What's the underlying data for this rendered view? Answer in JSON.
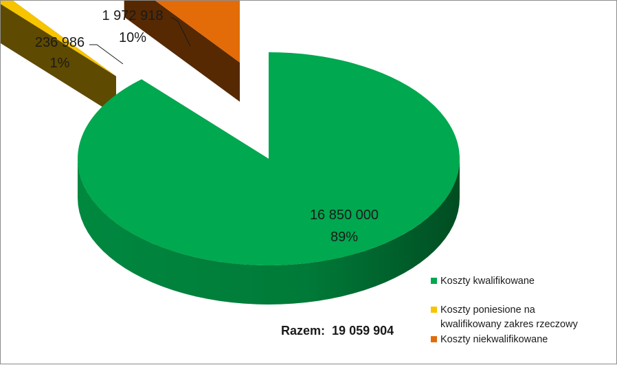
{
  "chart_data": {
    "type": "pie",
    "style": "3d-exploded",
    "slices": [
      {
        "label": "Koszty kwalifikowane",
        "value": 16850000,
        "value_text": "16 850 000",
        "percent_text": "89%",
        "color": "#00A84F"
      },
      {
        "label": "Koszty poniesione na kwalifikowany zakres rzeczowy",
        "value": 236986,
        "value_text": "236 986",
        "percent_text": "1%",
        "color": "#F7C400"
      },
      {
        "label": "Koszty niekwalifikowane",
        "value": 1972918,
        "value_text": "1 972 918",
        "percent_text": "10%",
        "color": "#E36C09"
      }
    ],
    "legend_position": "bottom-right",
    "legend": [
      {
        "line1": "Koszty kwalifikowane",
        "line2": "",
        "color": "#00A84F"
      },
      {
        "line1": "Koszty poniesione na",
        "line2": "kwalifikowany zakres rzeczowy",
        "color": "#F7C400"
      },
      {
        "line1": "Koszty niekwalifikowane",
        "line2": "",
        "color": "#E36C09"
      }
    ],
    "total": {
      "label": "Razem:",
      "value_text": "19 059 904"
    }
  }
}
